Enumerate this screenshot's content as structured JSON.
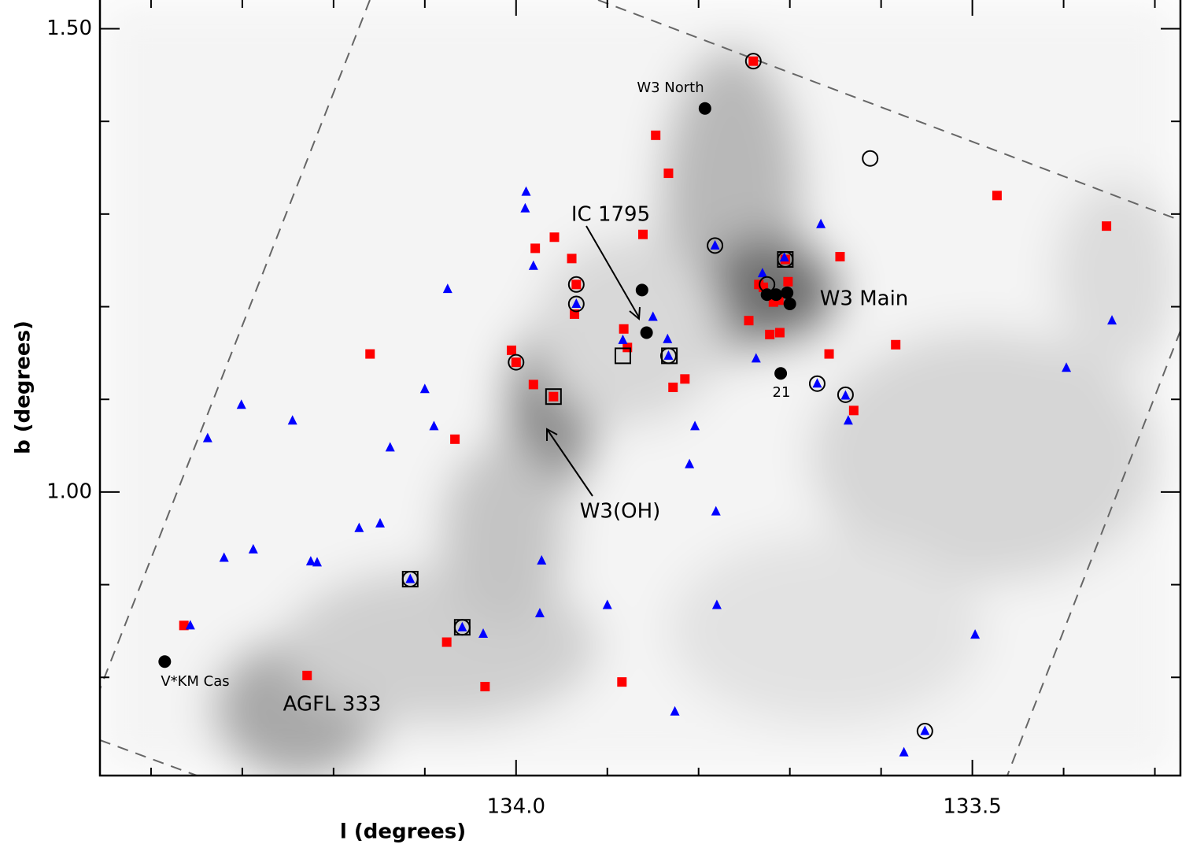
{
  "chart_data": {
    "type": "scatter",
    "xlabel": "l (degrees)",
    "ylabel": "b (degrees)",
    "xlim": [
      134.456,
      133.272
    ],
    "ylim": [
      0.694,
      1.531
    ],
    "xticks": [
      {
        "value": 134.0,
        "label": "134.0"
      },
      {
        "value": 133.5,
        "label": "133.5"
      }
    ],
    "xminorticks": [
      134.4,
      134.3,
      134.2,
      134.1,
      133.9,
      133.8,
      133.7,
      133.6,
      133.4,
      133.3
    ],
    "yticks": [
      {
        "value": 1.5,
        "label": "1.50"
      },
      {
        "value": 1.0,
        "label": "1.00"
      }
    ],
    "yminorticks": [
      1.4,
      1.3,
      1.2,
      1.1,
      0.9,
      0.8
    ],
    "annotations": [
      "W3 North",
      "IC 1795",
      "W3 Main",
      "21",
      "W3(OH)",
      "V*KM Cas",
      "AGFL 333"
    ],
    "series": [
      {
        "marker": "square",
        "color": "#ff0000",
        "x": [
          133.74,
          133.847,
          133.833,
          133.473,
          133.353,
          133.861,
          133.958,
          133.979,
          133.939,
          133.645,
          133.705,
          133.934,
          133.734,
          133.702,
          133.712,
          133.718,
          133.936,
          133.745,
          133.882,
          133.722,
          133.711,
          133.878,
          134.005,
          133.584,
          133.657,
          134.16,
          134.0,
          133.815,
          133.828,
          133.981,
          133.959,
          133.63,
          134.067,
          134.229,
          134.364,
          134.076,
          134.034,
          133.884,
          133.729
        ],
        "y": [
          1.465,
          1.385,
          1.344,
          1.32,
          1.287,
          1.278,
          1.275,
          1.263,
          1.252,
          1.254,
          1.251,
          1.224,
          1.224,
          1.227,
          1.207,
          1.205,
          1.192,
          1.185,
          1.176,
          1.17,
          1.172,
          1.156,
          1.153,
          1.159,
          1.149,
          1.149,
          1.14,
          1.122,
          1.113,
          1.116,
          1.103,
          1.088,
          1.057,
          0.802,
          0.856,
          0.838,
          0.79,
          0.795,
          1.221
        ]
      },
      {
        "marker": "triangle",
        "color": "#0000ff",
        "x": [
          133.989,
          133.99,
          133.666,
          133.782,
          133.981,
          133.706,
          134.075,
          133.73,
          133.934,
          133.85,
          133.347,
          133.883,
          133.834,
          133.833,
          133.737,
          133.397,
          133.67,
          134.1,
          134.301,
          133.639,
          134.245,
          134.338,
          134.09,
          133.804,
          133.636,
          134.138,
          133.81,
          133.781,
          134.149,
          134.172,
          134.288,
          134.32,
          134.225,
          134.218,
          133.972,
          134.116,
          133.9,
          133.78,
          133.974,
          134.357,
          134.059,
          134.036,
          133.497,
          133.826,
          133.552,
          133.575
        ],
        "y": [
          1.324,
          1.306,
          1.289,
          1.266,
          1.244,
          1.253,
          1.219,
          1.236,
          1.203,
          1.189,
          1.185,
          1.164,
          1.165,
          1.147,
          1.144,
          1.134,
          1.117,
          1.111,
          1.094,
          1.104,
          1.077,
          1.058,
          1.071,
          1.071,
          1.077,
          1.048,
          1.03,
          0.979,
          0.966,
          0.961,
          0.938,
          0.929,
          0.925,
          0.924,
          0.926,
          0.906,
          0.878,
          0.878,
          0.869,
          0.856,
          0.854,
          0.847,
          0.846,
          0.763,
          0.742,
          0.719
        ]
      },
      {
        "marker": "circle",
        "color": "#000000",
        "x": [
          133.793,
          133.862,
          133.857,
          133.725,
          133.715,
          133.703,
          133.7,
          133.71,
          134.385
        ],
        "y": [
          1.414,
          1.218,
          1.172,
          1.213,
          1.213,
          1.215,
          1.203,
          1.128,
          0.817
        ]
      },
      {
        "marker": "open-circle",
        "color": "#000000",
        "x": [
          133.74,
          133.612,
          133.782,
          133.934,
          133.934,
          133.725,
          134.0,
          133.833,
          133.67,
          133.639,
          133.705,
          134.116,
          134.059,
          133.552
        ],
        "y": [
          1.465,
          1.36,
          1.266,
          1.224,
          1.203,
          1.224,
          1.14,
          1.147,
          1.117,
          1.105,
          1.251,
          0.906,
          0.854,
          0.742
        ]
      },
      {
        "marker": "open-square",
        "color": "#000000",
        "x": [
          133.705,
          133.959,
          133.883,
          133.832,
          134.116,
          134.059
        ],
        "y": [
          1.251,
          1.103,
          1.147,
          1.147,
          0.906,
          0.854
        ]
      }
    ]
  }
}
